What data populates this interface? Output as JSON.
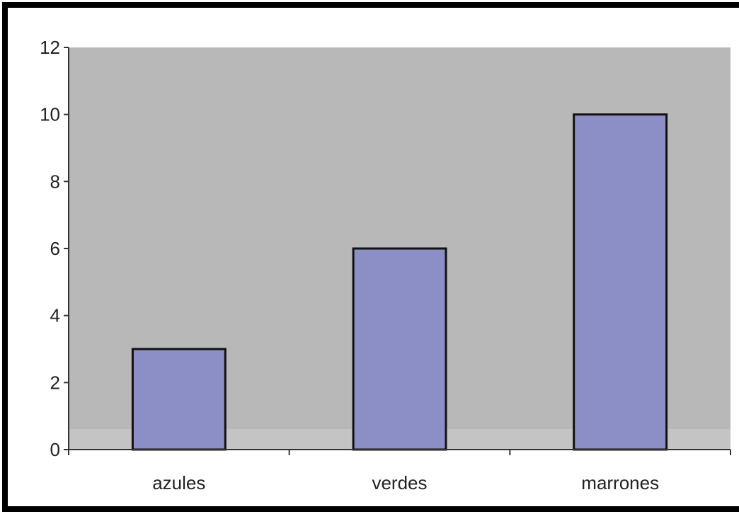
{
  "chart_data": {
    "type": "bar",
    "categories": [
      "azules",
      "verdes",
      "marrones"
    ],
    "values": [
      3,
      6,
      10
    ],
    "title": "",
    "xlabel": "",
    "ylabel": "",
    "ylim": [
      0,
      12
    ],
    "yticks": [
      "0",
      "2",
      "4",
      "6",
      "8",
      "10",
      "12"
    ],
    "grid": false,
    "legend": "none",
    "colors": {
      "bar_fill": "#8c8fc6",
      "bar_stroke": "#111111",
      "plot_background": "#b8b8b8",
      "axis": "#333333",
      "frame": "#000000"
    }
  }
}
